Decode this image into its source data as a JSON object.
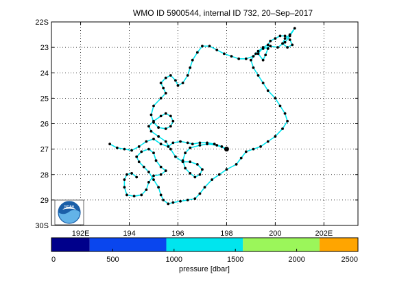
{
  "chart_data": {
    "type": "line",
    "title": "WMO ID 5900544, internal ID 732, 20–Sep–2017",
    "xlim": [
      190.8,
      203.4
    ],
    "ylim": [
      -30,
      -22
    ],
    "x_ticks": [
      {
        "value": 192,
        "label": "192E"
      },
      {
        "value": 194,
        "label": "194"
      },
      {
        "value": 196,
        "label": "196"
      },
      {
        "value": 198,
        "label": "198"
      },
      {
        "value": 200,
        "label": "200"
      },
      {
        "value": 202,
        "label": "202E"
      }
    ],
    "y_ticks": [
      {
        "value": -22,
        "label": "22S"
      },
      {
        "value": -23,
        "label": "23"
      },
      {
        "value": -24,
        "label": "24"
      },
      {
        "value": -25,
        "label": "25"
      },
      {
        "value": -26,
        "label": "26"
      },
      {
        "value": -27,
        "label": "27"
      },
      {
        "value": -28,
        "label": "28"
      },
      {
        "value": -29,
        "label": "29"
      },
      {
        "value": -30,
        "label": "30S"
      }
    ],
    "grid": true,
    "track_color": "#00e5ee",
    "marker_color": "#000000",
    "track": [
      [
        193.2,
        -26.8
      ],
      [
        193.5,
        -26.95
      ],
      [
        193.8,
        -27.0
      ],
      [
        194.1,
        -27.05
      ],
      [
        194.4,
        -26.9
      ],
      [
        194.7,
        -26.7
      ],
      [
        195.0,
        -26.6
      ],
      [
        195.3,
        -26.8
      ],
      [
        195.6,
        -26.9
      ],
      [
        195.8,
        -26.75
      ],
      [
        196.1,
        -26.7
      ],
      [
        196.4,
        -26.75
      ],
      [
        196.6,
        -26.8
      ],
      [
        196.9,
        -26.75
      ],
      [
        197.2,
        -26.75
      ],
      [
        197.5,
        -26.8
      ],
      [
        197.8,
        -26.9
      ],
      [
        198.0,
        -27.0
      ],
      [
        197.6,
        -26.85
      ],
      [
        197.2,
        -26.8
      ],
      [
        196.9,
        -26.85
      ],
      [
        196.5,
        -26.95
      ],
      [
        196.3,
        -27.15
      ],
      [
        196.2,
        -27.45
      ],
      [
        196.3,
        -27.75
      ],
      [
        196.5,
        -27.95
      ],
      [
        196.7,
        -28.1
      ],
      [
        196.9,
        -28.0
      ],
      [
        197.0,
        -27.8
      ],
      [
        196.8,
        -27.6
      ],
      [
        196.5,
        -27.5
      ],
      [
        196.2,
        -27.5
      ],
      [
        195.9,
        -27.3
      ],
      [
        195.7,
        -27.0
      ],
      [
        195.5,
        -26.7
      ],
      [
        195.2,
        -26.5
      ],
      [
        194.9,
        -26.3
      ],
      [
        194.8,
        -26.1
      ],
      [
        195.0,
        -25.9
      ],
      [
        195.3,
        -25.7
      ],
      [
        195.5,
        -25.6
      ],
      [
        195.7,
        -25.7
      ],
      [
        195.8,
        -25.9
      ],
      [
        195.7,
        -26.1
      ],
      [
        195.5,
        -26.2
      ],
      [
        195.2,
        -26.15
      ],
      [
        195.0,
        -25.95
      ],
      [
        194.9,
        -25.65
      ],
      [
        195.0,
        -25.3
      ],
      [
        195.3,
        -25.0
      ],
      [
        195.5,
        -24.8
      ],
      [
        195.4,
        -24.6
      ],
      [
        195.3,
        -24.4
      ],
      [
        195.5,
        -24.2
      ],
      [
        195.7,
        -24.1
      ],
      [
        195.9,
        -24.3
      ],
      [
        196.0,
        -24.5
      ],
      [
        196.2,
        -24.4
      ],
      [
        196.4,
        -24.1
      ],
      [
        196.5,
        -23.8
      ],
      [
        196.6,
        -23.5
      ],
      [
        196.8,
        -23.2
      ],
      [
        197.0,
        -22.95
      ],
      [
        197.3,
        -22.95
      ],
      [
        197.6,
        -23.1
      ],
      [
        197.9,
        -23.25
      ],
      [
        198.2,
        -23.35
      ],
      [
        198.5,
        -23.45
      ],
      [
        198.8,
        -23.45
      ],
      [
        199.1,
        -23.35
      ],
      [
        199.3,
        -23.15
      ],
      [
        199.5,
        -23.0
      ],
      [
        199.7,
        -23.05
      ],
      [
        199.6,
        -23.3
      ],
      [
        199.5,
        -23.5
      ],
      [
        199.3,
        -23.25
      ],
      [
        199.5,
        -23.0
      ],
      [
        199.7,
        -22.9
      ],
      [
        199.8,
        -22.75
      ],
      [
        200.0,
        -22.65
      ],
      [
        200.2,
        -22.55
      ],
      [
        200.4,
        -22.55
      ],
      [
        200.6,
        -22.7
      ],
      [
        200.7,
        -22.9
      ],
      [
        200.5,
        -23.0
      ],
      [
        200.3,
        -22.85
      ],
      [
        200.4,
        -22.65
      ],
      [
        200.6,
        -22.5
      ],
      [
        200.8,
        -22.25
      ],
      [
        200.6,
        -22.55
      ],
      [
        200.4,
        -22.8
      ],
      [
        200.1,
        -23.0
      ],
      [
        199.8,
        -22.95
      ],
      [
        199.5,
        -23.05
      ],
      [
        199.2,
        -23.25
      ],
      [
        199.0,
        -23.5
      ],
      [
        199.1,
        -23.8
      ],
      [
        199.3,
        -24.1
      ],
      [
        199.5,
        -24.4
      ],
      [
        199.7,
        -24.7
      ],
      [
        200.0,
        -25.0
      ],
      [
        200.2,
        -25.3
      ],
      [
        200.4,
        -25.6
      ],
      [
        200.5,
        -25.9
      ],
      [
        200.3,
        -26.2
      ],
      [
        200.0,
        -26.5
      ],
      [
        199.7,
        -26.7
      ],
      [
        199.4,
        -26.9
      ],
      [
        199.1,
        -27.0
      ],
      [
        198.8,
        -27.1
      ],
      [
        198.6,
        -27.35
      ],
      [
        198.4,
        -27.6
      ],
      [
        198.0,
        -27.8
      ],
      [
        197.7,
        -28.0
      ],
      [
        197.4,
        -28.2
      ],
      [
        197.1,
        -28.5
      ],
      [
        196.9,
        -28.75
      ],
      [
        196.7,
        -28.95
      ],
      [
        196.4,
        -29.0
      ],
      [
        196.1,
        -29.05
      ],
      [
        195.8,
        -29.1
      ],
      [
        195.6,
        -29.15
      ],
      [
        195.4,
        -29.0
      ],
      [
        195.3,
        -28.8
      ],
      [
        195.2,
        -28.5
      ],
      [
        195.0,
        -28.2
      ],
      [
        194.8,
        -27.9
      ],
      [
        194.6,
        -27.7
      ],
      [
        194.4,
        -27.5
      ],
      [
        194.3,
        -27.3
      ],
      [
        194.5,
        -27.1
      ],
      [
        194.8,
        -27.0
      ],
      [
        195.0,
        -27.15
      ],
      [
        195.1,
        -27.45
      ],
      [
        195.3,
        -27.7
      ],
      [
        195.5,
        -27.85
      ],
      [
        195.3,
        -28.0
      ],
      [
        195.0,
        -28.05
      ],
      [
        194.8,
        -28.3
      ],
      [
        194.7,
        -28.6
      ],
      [
        194.5,
        -28.8
      ],
      [
        194.2,
        -28.85
      ],
      [
        193.9,
        -28.8
      ],
      [
        193.8,
        -28.5
      ],
      [
        193.8,
        -28.2
      ],
      [
        193.9,
        -28.0
      ],
      [
        194.1,
        -27.95
      ],
      [
        194.3,
        -28.1
      ]
    ]
  },
  "colorbar": {
    "label": "pressure [dbar]",
    "range": [
      0,
      2500
    ],
    "ticks": [
      0,
      500,
      1000,
      1500,
      2000,
      2500
    ],
    "segments": [
      {
        "from": 0,
        "to": 312,
        "color": "#00008b"
      },
      {
        "from": 312,
        "to": 937,
        "color": "#0a46ee"
      },
      {
        "from": 937,
        "to": 1562,
        "color": "#00e5ee"
      },
      {
        "from": 1562,
        "to": 2187,
        "color": "#9bf65a"
      },
      {
        "from": 2187,
        "to": 2500,
        "color": "#ffa500"
      }
    ]
  },
  "logo": {
    "text": "NOAA",
    "colors": {
      "sky": "#1b5fa8",
      "wave": "#63b3e8",
      "bird": "#ffffff"
    }
  }
}
